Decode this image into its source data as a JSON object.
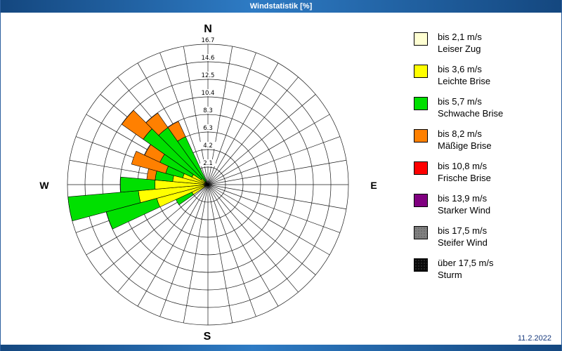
{
  "window": {
    "title": "Windstatistik [%]",
    "date": "11.2.2022"
  },
  "theme": {
    "titlebar_blue_dark": "#14477f",
    "titlebar_blue_light": "#2e7bc4",
    "date_text_color": "#16387c",
    "grid_color": "#1a1a1a"
  },
  "chart_data": {
    "type": "wind-rose",
    "title": "Windstatistik [%]",
    "units": "%",
    "scale_max": 16.7,
    "sector_angle_deg": 10,
    "grid": true,
    "legend_position": "right",
    "ring_labels": [
      "2.1",
      "4.2",
      "6.3",
      "8.3",
      "10.4",
      "12.5",
      "14.6",
      "16.7"
    ],
    "compass": {
      "north": "N",
      "east": "E",
      "south": "S",
      "west": "W"
    },
    "speed_classes": [
      {
        "label": "bis 2,1 m/s",
        "name": "Leiser Zug",
        "color": "#ffffd2"
      },
      {
        "label": "bis 3,6 m/s",
        "name": "Leichte Brise",
        "color": "#ffff00"
      },
      {
        "label": "bis 5,7 m/s",
        "name": "Schwache Brise",
        "color": "#00e000"
      },
      {
        "label": "bis 8,2 m/s",
        "name": "Mäßige Brise",
        "color": "#ff8000"
      },
      {
        "label": "bis 10,8 m/s",
        "name": "Frische Brise",
        "color": "#ff0000"
      },
      {
        "label": "bis 13,9 m/s",
        "name": "Starker Wind",
        "color": "#800080"
      },
      {
        "label": "bis 17,5 m/s",
        "name": "Steifer Wind",
        "color": "#808080",
        "texture": "speckle-dark"
      },
      {
        "label": "über 17,5 m/s",
        "name": "Sturm",
        "color": "#0a0a0a",
        "texture": "speckle-light"
      }
    ],
    "bars": [
      {
        "direction_deg": 240,
        "stops": [
          [
            0,
            0.4
          ],
          [
            1,
            2.1
          ],
          [
            2,
            4.2
          ]
        ]
      },
      {
        "direction_deg": 250,
        "stops": [
          [
            0,
            0.4
          ],
          [
            1,
            6.3
          ],
          [
            2,
            12.5
          ]
        ]
      },
      {
        "direction_deg": 260,
        "stops": [
          [
            0,
            0.4
          ],
          [
            1,
            8.3
          ],
          [
            2,
            16.7
          ]
        ]
      },
      {
        "direction_deg": 270,
        "stops": [
          [
            0,
            0.4
          ],
          [
            1,
            6.3
          ],
          [
            2,
            10.4
          ]
        ]
      },
      {
        "direction_deg": 280,
        "stops": [
          [
            0,
            0.4
          ],
          [
            1,
            4.2
          ],
          [
            2,
            6.3
          ],
          [
            3,
            7.3
          ]
        ]
      },
      {
        "direction_deg": 290,
        "stops": [
          [
            0,
            0.4
          ],
          [
            1,
            3.1
          ],
          [
            2,
            5.2
          ],
          [
            3,
            9.4
          ]
        ]
      },
      {
        "direction_deg": 300,
        "stops": [
          [
            0,
            0.4
          ],
          [
            1,
            2.1
          ],
          [
            2,
            6.3
          ],
          [
            3,
            8.3
          ]
        ]
      },
      {
        "direction_deg": 310,
        "stops": [
          [
            0,
            0.4
          ],
          [
            1,
            1.0
          ],
          [
            2,
            9.4
          ],
          [
            3,
            12.5
          ]
        ]
      },
      {
        "direction_deg": 320,
        "stops": [
          [
            0,
            0.4
          ],
          [
            2,
            8.3
          ],
          [
            3,
            10.4
          ]
        ]
      },
      {
        "direction_deg": 330,
        "stops": [
          [
            0,
            0.4
          ],
          [
            2,
            6.3
          ],
          [
            3,
            8.3
          ]
        ]
      }
    ]
  }
}
